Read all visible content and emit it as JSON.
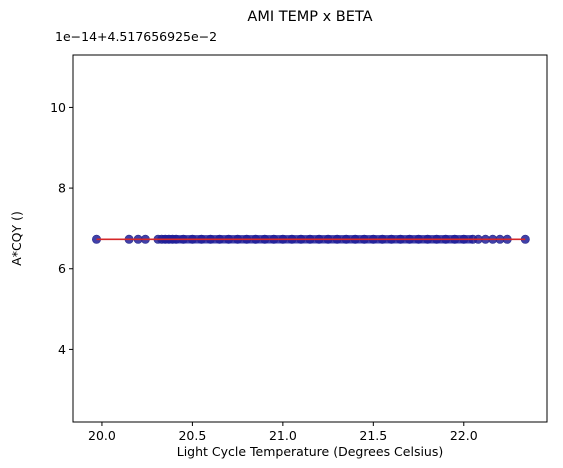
{
  "chart_data": {
    "type": "scatter",
    "title": "AMI TEMP x BETA",
    "xlabel": "Light Cycle Temperature (Degrees Celsius)",
    "ylabel": "A*CQY ()",
    "offset_text": "1e−14+4.517656925e−2",
    "xlim": [
      19.84,
      22.46
    ],
    "ylim": [
      2.2,
      11.3
    ],
    "x_ticks": [
      20.0,
      20.5,
      21.0,
      21.5,
      22.0
    ],
    "x_tick_labels": [
      "20.0",
      "20.5",
      "21.0",
      "21.5",
      "22.0"
    ],
    "y_ticks": [
      4,
      6,
      8,
      10
    ],
    "y_tick_labels": [
      "4",
      "6",
      "8",
      "10"
    ],
    "grid": false,
    "series": [
      {
        "kind": "scatter",
        "color": "#1f1f9a",
        "x": [
          19.97,
          20.15,
          20.2,
          20.24,
          20.31,
          20.33,
          20.35,
          20.37,
          20.39,
          20.41,
          20.45,
          20.5,
          20.55,
          20.6,
          20.65,
          20.7,
          20.75,
          20.8,
          20.85,
          20.9,
          20.95,
          21.0,
          21.05,
          21.1,
          21.15,
          21.2,
          21.25,
          21.3,
          21.35,
          21.4,
          21.45,
          21.5,
          21.55,
          21.6,
          21.65,
          21.7,
          21.75,
          21.8,
          21.85,
          21.9,
          21.95,
          22.0,
          22.05,
          22.08,
          22.12,
          22.16,
          22.2,
          22.24,
          22.34
        ],
        "y": [
          6.73,
          6.73,
          6.73,
          6.73,
          6.73,
          6.73,
          6.73,
          6.73,
          6.73,
          6.73,
          6.73,
          6.73,
          6.73,
          6.73,
          6.73,
          6.73,
          6.73,
          6.73,
          6.73,
          6.73,
          6.73,
          6.73,
          6.73,
          6.73,
          6.73,
          6.73,
          6.73,
          6.73,
          6.73,
          6.73,
          6.73,
          6.73,
          6.73,
          6.73,
          6.73,
          6.73,
          6.73,
          6.73,
          6.73,
          6.73,
          6.73,
          6.73,
          6.73,
          6.73,
          6.73,
          6.73,
          6.73,
          6.73,
          6.73
        ]
      },
      {
        "kind": "line",
        "color": "#d62728",
        "x": [
          19.97,
          22.34
        ],
        "y": [
          6.73,
          6.73
        ]
      }
    ]
  }
}
